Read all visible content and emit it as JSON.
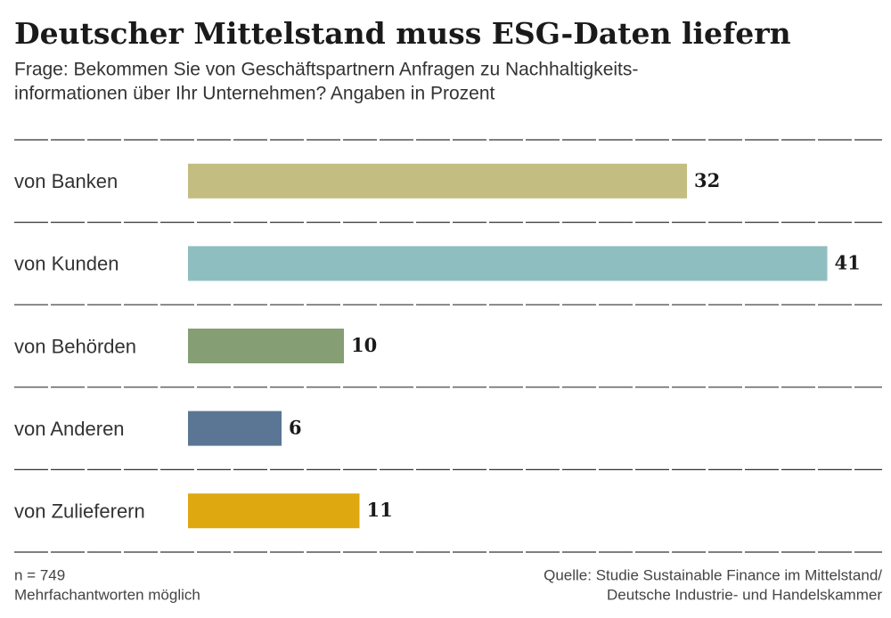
{
  "chart_data": {
    "type": "bar",
    "orientation": "horizontal",
    "title": "Deutscher Mittelstand muss ESG-Daten liefern",
    "subtitle": [
      "Frage: Bekommen Sie von Geschäftspartnern Anfragen zu Nachhaltigkeits-",
      "informationen über Ihr Unternehmen? Angaben in Prozent"
    ],
    "categories": [
      "von Banken",
      "von Kunden",
      "von Behörden",
      "von Anderen",
      "von Zulieferern"
    ],
    "values": [
      32,
      41,
      10,
      6,
      11
    ],
    "colors": [
      "#c3bd82",
      "#8fbec1",
      "#859e74",
      "#5b7694",
      "#dea810"
    ],
    "notes": [
      "n = 749",
      "Mehrfachantworten möglich"
    ],
    "source": [
      "Quelle: Studie Sustainable Finance im Mittelstand/",
      "Deutsche Industrie- und Handelskammer"
    ]
  }
}
